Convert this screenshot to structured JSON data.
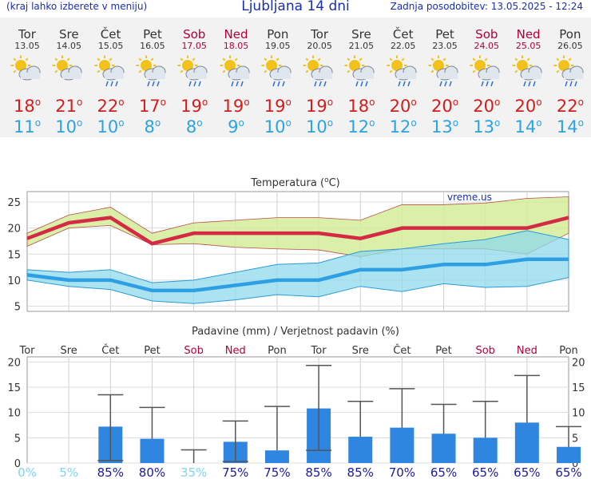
{
  "header": {
    "left_note": "(kraj lahko izberete v meniju)",
    "title": "Ljubljana 14 dni",
    "updated": "Zadnja posodobitev: 13.05.2025 - 12:24"
  },
  "days": [
    {
      "name": "Tor",
      "date": "13.05",
      "hi": "18",
      "lo": "11",
      "weekend": false,
      "icon": "partly-cloudy-icon"
    },
    {
      "name": "Sre",
      "date": "14.05",
      "hi": "21",
      "lo": "10",
      "weekend": false,
      "icon": "sun-cloud-icon"
    },
    {
      "name": "Čet",
      "date": "15.05",
      "hi": "22",
      "lo": "10",
      "weekend": false,
      "icon": "sun-cloud-rain-icon"
    },
    {
      "name": "Pet",
      "date": "16.05",
      "hi": "17",
      "lo": "8",
      "weekend": false,
      "icon": "sun-cloud-rain-icon"
    },
    {
      "name": "Sob",
      "date": "17.05",
      "hi": "19",
      "lo": "8",
      "weekend": true,
      "icon": "sun-cloud-rain-icon"
    },
    {
      "name": "Ned",
      "date": "18.05",
      "hi": "19",
      "lo": "9",
      "weekend": true,
      "icon": "sun-cloud-rain-icon"
    },
    {
      "name": "Pon",
      "date": "19.05",
      "hi": "19",
      "lo": "10",
      "weekend": false,
      "icon": "sun-cloud-rain-icon"
    },
    {
      "name": "Tor",
      "date": "20.05",
      "hi": "19",
      "lo": "10",
      "weekend": false,
      "icon": "sun-cloud-rain-icon"
    },
    {
      "name": "Sre",
      "date": "21.05",
      "hi": "18",
      "lo": "12",
      "weekend": false,
      "icon": "sun-cloud-rain-icon"
    },
    {
      "name": "Čet",
      "date": "22.05",
      "hi": "20",
      "lo": "12",
      "weekend": false,
      "icon": "sun-cloud-rain-icon"
    },
    {
      "name": "Pet",
      "date": "23.05",
      "hi": "20",
      "lo": "13",
      "weekend": false,
      "icon": "sun-cloud-rain-icon"
    },
    {
      "name": "Sob",
      "date": "24.05",
      "hi": "20",
      "lo": "13",
      "weekend": true,
      "icon": "sun-cloud-rain-icon"
    },
    {
      "name": "Ned",
      "date": "25.05",
      "hi": "20",
      "lo": "14",
      "weekend": true,
      "icon": "sun-cloud-rain-icon"
    },
    {
      "name": "Pon",
      "date": "26.05",
      "hi": "22",
      "lo": "14",
      "weekend": false,
      "icon": "sun-cloud-rain-icon"
    }
  ],
  "degree_symbol": "o",
  "colors": {
    "hi": "#d41c1c",
    "lo": "#2aa3e0",
    "weekend": "#b0003a",
    "hi_band": "#d4ec98",
    "lo_band": "#8fd9ec",
    "bar": "#2f86e0",
    "prob_high": "#1a1aa0",
    "prob_low": "#7fd6f0",
    "credit": "#1a2fb0"
  },
  "chart_data": [
    {
      "type": "line",
      "title": "Temperatura (oC)",
      "title_main": "Temperatura (",
      "title_unit": "C)",
      "credit": "vreme.us",
      "ylim": [
        4,
        27
      ],
      "yticks": [
        5,
        10,
        15,
        20,
        25
      ],
      "grid": true,
      "categories": [
        "13.05",
        "14.05",
        "15.05",
        "16.05",
        "17.05",
        "18.05",
        "19.05",
        "20.05",
        "21.05",
        "22.05",
        "23.05",
        "24.05",
        "25.05",
        "26.05"
      ],
      "series": [
        {
          "role": "max",
          "values": [
            18,
            21,
            22,
            17,
            19,
            19,
            19,
            19,
            18,
            20,
            20,
            20,
            20,
            22
          ]
        },
        {
          "role": "min",
          "values": [
            11,
            10,
            10,
            8,
            8,
            9,
            10,
            10,
            12,
            12,
            13,
            13,
            14,
            14
          ]
        },
        {
          "role": "max_band_upper",
          "values": [
            19,
            22.5,
            24,
            19,
            21,
            21.5,
            22,
            22,
            21.5,
            24.5,
            24.5,
            24.8,
            25.7,
            26
          ]
        },
        {
          "role": "max_band_lower",
          "values": [
            16.5,
            20,
            20.5,
            16.8,
            17,
            16.3,
            16,
            15.8,
            14.5,
            16,
            16,
            16,
            15,
            19
          ]
        },
        {
          "role": "min_band_upper",
          "values": [
            12,
            11.5,
            12,
            9.5,
            10,
            11.5,
            13,
            13.3,
            15.5,
            16,
            17,
            17.8,
            19.5,
            17.8
          ]
        },
        {
          "role": "min_band_lower",
          "values": [
            10,
            8.8,
            8.2,
            6,
            5.5,
            6.2,
            7.2,
            6.8,
            8.8,
            7.8,
            9.3,
            8.6,
            8.8,
            10.5
          ]
        }
      ]
    },
    {
      "type": "bar",
      "title": "Padavine (mm) / Verjetnost padavin (%)",
      "ylim": [
        0,
        21
      ],
      "yticks": [
        0,
        5,
        10,
        15,
        20
      ],
      "grid": true,
      "day_labels": [
        "Tor",
        "Sre",
        "Čet",
        "Pet",
        "Sob",
        "Ned",
        "Pon",
        "Tor",
        "Sre",
        "Čet",
        "Pet",
        "Sob",
        "Ned",
        "Pon"
      ],
      "values": [
        0,
        0,
        7.2,
        4.8,
        0,
        4.2,
        2.5,
        10.8,
        5.2,
        7.0,
        5.8,
        5.0,
        8.0,
        3.2
      ],
      "err_low": [
        null,
        null,
        0.5,
        null,
        null,
        0.3,
        null,
        2.5,
        null,
        null,
        null,
        null,
        null,
        null
      ],
      "err_high": [
        null,
        null,
        13.5,
        11,
        2.6,
        8.3,
        11.2,
        19.3,
        12.2,
        14.7,
        11.6,
        12.2,
        17.3,
        7.2
      ],
      "probability": [
        "0%",
        "5%",
        "85%",
        "80%",
        "35%",
        "75%",
        "75%",
        "85%",
        "85%",
        "70%",
        "65%",
        "65%",
        "65%",
        "65%"
      ],
      "probability_values": [
        0,
        5,
        85,
        80,
        35,
        75,
        75,
        85,
        85,
        70,
        65,
        65,
        65,
        65
      ]
    }
  ]
}
